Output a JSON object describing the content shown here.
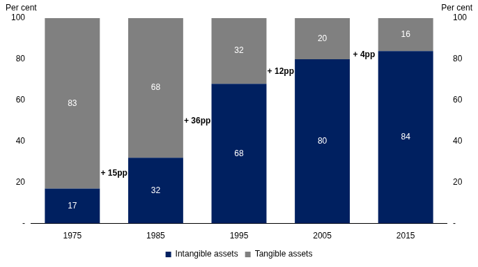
{
  "chart_data": {
    "type": "bar",
    "stacked": true,
    "y_label": "Per cent",
    "categories": [
      "1975",
      "1985",
      "1995",
      "2005",
      "2015"
    ],
    "series": [
      {
        "name": "Intangible assets",
        "color": "#002060",
        "values": [
          17,
          32,
          68,
          80,
          84
        ]
      },
      {
        "name": "Tangible assets",
        "color": "#808080",
        "values": [
          83,
          68,
          32,
          20,
          16
        ]
      }
    ],
    "annotations": [
      "+ 15pp",
      "+ 36pp",
      "+ 12pp",
      "+ 4pp"
    ],
    "ylim": [
      0,
      100
    ],
    "yticks": [
      {
        "value": 0,
        "label": "-"
      },
      20,
      40,
      60,
      80,
      100
    ],
    "grid": false,
    "data_labels": true,
    "legend": "bottom"
  }
}
